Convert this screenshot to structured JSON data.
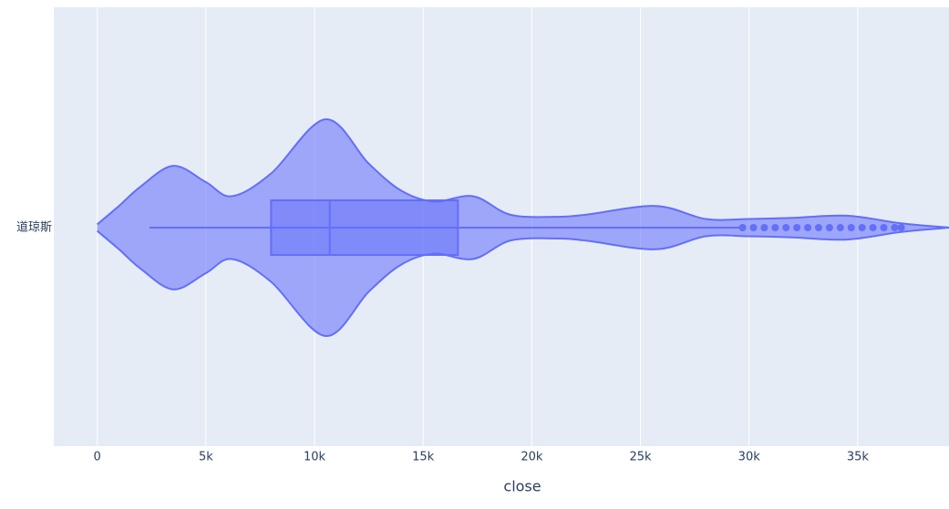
{
  "chart_data": {
    "type": "violin",
    "orientation": "h",
    "category": "道琼斯",
    "xaxis_title": "close",
    "color": "#636efa",
    "xlim": [
      -2000,
      39200
    ],
    "xticks": [
      0,
      {
        "value": 5000,
        "label": "5k"
      },
      {
        "value": 10000,
        "label": "10k"
      },
      {
        "value": 15000,
        "label": "15k"
      },
      {
        "value": 20000,
        "label": "20k"
      },
      {
        "value": 25000,
        "label": "25k"
      },
      {
        "value": 30000,
        "label": "30k"
      },
      {
        "value": 35000,
        "label": "35k"
      }
    ],
    "grid": true,
    "violin": {
      "x": [
        0,
        1000,
        2000,
        3500,
        5000,
        6200,
        8000,
        10500,
        12500,
        14000,
        15500,
        17300,
        19000,
        21000,
        22500,
        25700,
        28000,
        30000,
        32000,
        34500,
        37000,
        39200
      ],
      "density": [
        0.03,
        0.2,
        0.38,
        0.57,
        0.42,
        0.29,
        0.5,
        1.0,
        0.59,
        0.34,
        0.24,
        0.29,
        0.12,
        0.1,
        0.12,
        0.2,
        0.08,
        0.08,
        0.09,
        0.11,
        0.04,
        0.0
      ]
    },
    "box": {
      "lowerfence": 2400,
      "q1": 8000,
      "median": 10700,
      "q3": 16600,
      "upperfence": 29600
    },
    "points": [
      29700,
      30200,
      30700,
      31200,
      31700,
      32200,
      32700,
      33200,
      33700,
      34200,
      34700,
      35200,
      35700,
      36200,
      36700,
      37000
    ]
  }
}
